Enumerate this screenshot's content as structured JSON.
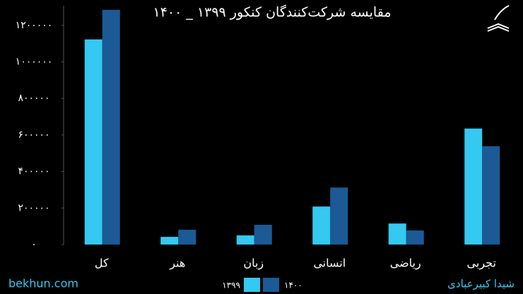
{
  "chart_data": {
    "type": "bar",
    "title": "مقایسه شرکت‌کنندگان کنکور ۱۳۹۹ _ ۱۴۰۰",
    "categories": [
      "کل",
      "هنر",
      "زبان",
      "انسانی",
      "ریاضی",
      "تجربی"
    ],
    "series": [
      {
        "name": "۱۳۹۹",
        "color": "#35c8f0",
        "values": [
          1123000,
          42000,
          50000,
          208000,
          115000,
          635000
        ]
      },
      {
        "name": "۱۴۰۰",
        "color": "#1b5a95",
        "values": [
          1285000,
          81000,
          108000,
          312000,
          77000,
          538000
        ]
      }
    ],
    "ylim": [
      0,
      1300000
    ],
    "yticks": [
      {
        "value": 0,
        "label": "۰"
      },
      {
        "value": 200000,
        "label": "۲۰۰۰۰۰"
      },
      {
        "value": 400000,
        "label": "۴۰۰۰۰۰"
      },
      {
        "value": 600000,
        "label": "۶۰۰۰۰۰"
      },
      {
        "value": 800000,
        "label": "۸۰۰۰۰۰"
      },
      {
        "value": 1000000,
        "label": "۱۰۰۰۰۰۰"
      },
      {
        "value": 1200000,
        "label": "۱۲۰۰۰۰۰"
      }
    ],
    "grid": false,
    "legend": "bottom",
    "watermark": "bekhun.com",
    "author": "شیدا کبیرعبادی"
  }
}
